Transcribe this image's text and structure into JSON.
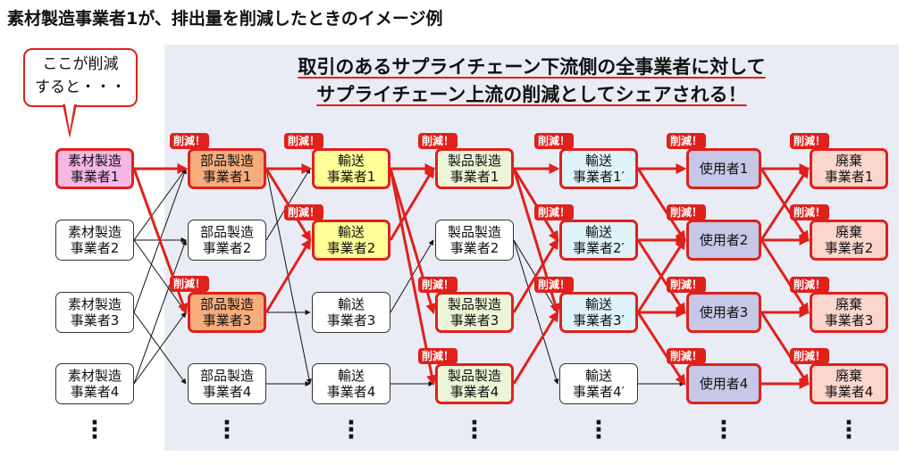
{
  "title": "素材製造事業者1が、排出量を削減したときのイメージ例",
  "callout": {
    "line1": "ここが削減",
    "line2": "すると・・・"
  },
  "banner": {
    "line1": "取引のあるサプライチェーン下流側の全事業者に対して",
    "line2": "サプライチェーン上流の削減としてシェアされる！"
  },
  "badge_label": "削減！",
  "nodes": {
    "materials": [
      {
        "line1": "素材製造",
        "line2": "事業者1"
      },
      {
        "line1": "素材製造",
        "line2": "事業者2"
      },
      {
        "line1": "素材製造",
        "line2": "事業者3"
      },
      {
        "line1": "素材製造",
        "line2": "事業者4"
      }
    ],
    "parts": [
      {
        "line1": "部品製造",
        "line2": "事業者1"
      },
      {
        "line1": "部品製造",
        "line2": "事業者2"
      },
      {
        "line1": "部品製造",
        "line2": "事業者3"
      },
      {
        "line1": "部品製造",
        "line2": "事業者4"
      }
    ],
    "transportA": [
      {
        "line1": "輸送",
        "line2": "事業者1"
      },
      {
        "line1": "輸送",
        "line2": "事業者2"
      },
      {
        "line1": "輸送",
        "line2": "事業者3"
      },
      {
        "line1": "輸送",
        "line2": "事業者4"
      }
    ],
    "products": [
      {
        "line1": "製品製造",
        "line2": "事業者1"
      },
      {
        "line1": "製品製造",
        "line2": "事業者2"
      },
      {
        "line1": "製品製造",
        "line2": "事業者3"
      },
      {
        "line1": "製品製造",
        "line2": "事業者4"
      }
    ],
    "transportB": [
      {
        "line1": "輸送",
        "line2": "事業者1′"
      },
      {
        "line1": "輸送",
        "line2": "事業者2′"
      },
      {
        "line1": "輸送",
        "line2": "事業者3′"
      },
      {
        "line1": "輸送",
        "line2": "事業者4′"
      }
    ],
    "users": [
      {
        "line1": "使用者1"
      },
      {
        "line1": "使用者2"
      },
      {
        "line1": "使用者3"
      },
      {
        "line1": "使用者4"
      }
    ],
    "disposal": [
      {
        "line1": "廃棄",
        "line2": "事業者1"
      },
      {
        "line1": "廃棄",
        "line2": "事業者2"
      },
      {
        "line1": "廃棄",
        "line2": "事業者3"
      },
      {
        "line1": "廃棄",
        "line2": "事業者4"
      }
    ]
  },
  "colors": {
    "accent": "#e0201b",
    "panel": "#e9ecf4",
    "material_highlight": "#f5b7e6",
    "parts_highlight": "#f6ad7c",
    "transport_highlight": "#ffff99",
    "products_highlight": "#ecf5d6",
    "transportB_highlight": "#dff3fb",
    "users_highlight": "#c5c8e6",
    "disposal_highlight": "#fad6cc"
  }
}
